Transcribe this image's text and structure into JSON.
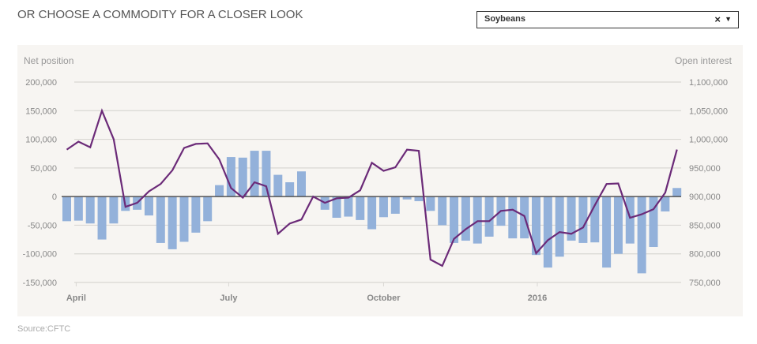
{
  "heading": "OR CHOOSE A COMMODITY FOR A CLOSER LOOK",
  "selector": {
    "value": "Soybeans",
    "clear_icon": "×",
    "dropdown_icon": "▼"
  },
  "source": "Source:CFTC",
  "colors": {
    "bar": "#93b1da",
    "line": "#6b2a78",
    "zero_line": "#555555",
    "grid": "#d9d7d3",
    "panel": "#f7f5f2"
  },
  "chart_data": {
    "type": "bar+line",
    "left_axis_title": "Net position",
    "right_axis_title": "Open interest",
    "left_ylim": [
      -150000,
      200000
    ],
    "right_ylim": [
      750000,
      1100000
    ],
    "left_ticks": [
      200000,
      150000,
      100000,
      50000,
      0,
      -50000,
      -100000,
      -150000
    ],
    "left_tick_labels": [
      "200,000",
      "150,000",
      "100,000",
      "50,000",
      "0",
      "-50,000",
      "-100,000",
      "-150,000"
    ],
    "right_ticks": [
      1100000,
      1050000,
      1000000,
      950000,
      900000,
      850000,
      800000,
      750000
    ],
    "right_tick_labels": [
      "1,100,000",
      "1,050,000",
      "1,000,000",
      "950,000",
      "900,000",
      "850,000",
      "800,000",
      "750,000"
    ],
    "x_ticks": [
      {
        "label": "April",
        "index": 0.8
      },
      {
        "label": "July",
        "index": 13.8
      },
      {
        "label": "October",
        "index": 27.0
      },
      {
        "label": "2016",
        "index": 40.1
      }
    ],
    "grid": true,
    "series": [
      {
        "name": "Net position",
        "type": "bar",
        "axis": "left",
        "values": [
          -43000,
          -42000,
          -47000,
          -75000,
          -47000,
          -25000,
          -23000,
          -33000,
          -81000,
          -92000,
          -79000,
          -63000,
          -43000,
          20000,
          69000,
          68000,
          80000,
          80000,
          38000,
          25000,
          44000,
          0,
          -23000,
          -37000,
          -35000,
          -41000,
          -57000,
          -36000,
          -30000,
          -5000,
          -8000,
          -25000,
          -50000,
          -81000,
          -77000,
          -82000,
          -70000,
          -51000,
          -73000,
          -73000,
          -102000,
          -124000,
          -105000,
          -77000,
          -81000,
          -80000,
          -124000,
          -100000,
          -82000,
          -134000,
          -88000,
          -26000,
          15000
        ]
      },
      {
        "name": "Open interest",
        "type": "line",
        "axis": "right",
        "values": [
          982000,
          996000,
          986000,
          1050000,
          1000000,
          882000,
          889000,
          909000,
          922000,
          946000,
          985000,
          992000,
          993000,
          965000,
          915000,
          898000,
          925000,
          918000,
          835000,
          853000,
          860000,
          900000,
          889000,
          897000,
          898000,
          911000,
          959000,
          945000,
          951000,
          982000,
          980000,
          790000,
          779000,
          826000,
          843000,
          857000,
          857000,
          875000,
          877000,
          866000,
          801000,
          824000,
          838000,
          835000,
          846000,
          885000,
          922000,
          923000,
          863000,
          869000,
          878000,
          907000,
          982000
        ]
      }
    ]
  }
}
